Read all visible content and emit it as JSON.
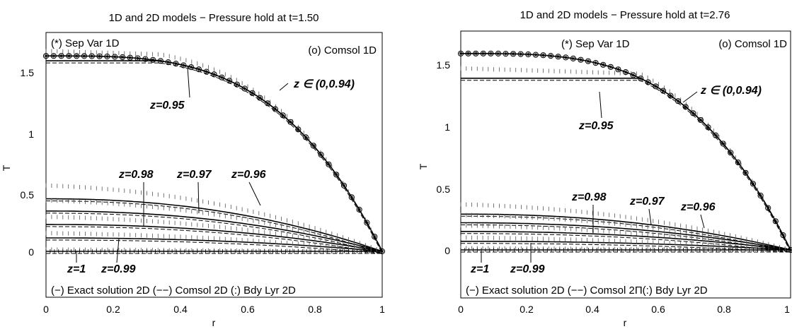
{
  "chart_data": [
    {
      "type": "line",
      "title": "1D and 2D models − Pressure hold at t=1.50",
      "xlabel": "r",
      "ylabel": "T",
      "xlim": [
        0,
        1
      ],
      "ylim": [
        -0.25,
        1.7
      ],
      "xticks": [
        "0",
        "0.2",
        "0.4",
        "0.6",
        "0.8",
        "1"
      ],
      "yticks": [
        "0",
        "0.5",
        "1",
        "1.5"
      ],
      "grid": false,
      "legend_top_left": "(*) Sep Var 1D",
      "legend_top_right": "(o) Comsol 1D",
      "legend_bottom": "(−) Exact solution 2D (−−) Comsol 2D (:) Bdy Lyr 2D",
      "curve_labels": [
        "z ∈ (0,0.94)",
        "z=0.95",
        "z=0.96",
        "z=0.97",
        "z=0.98",
        "z=0.99",
        "z=1"
      ],
      "top_curve_amplitude": 1.6,
      "series": [
        {
          "name": "z ∈ (0,0.94)",
          "T_at_r0": 1.6
        },
        {
          "name": "z=0.95",
          "T_at_r0": 1.56
        },
        {
          "name": "z=0.96",
          "T_at_r0": 0.43
        },
        {
          "name": "z=0.97",
          "T_at_r0": 0.33
        },
        {
          "name": "z=0.98",
          "T_at_r0": 0.22
        },
        {
          "name": "z=0.99",
          "T_at_r0": 0.11
        },
        {
          "name": "z=1",
          "T_at_r0": 0.0
        }
      ]
    },
    {
      "type": "line",
      "title": "1D and 2D models − Pressure hold at t=2.76",
      "xlabel": "r",
      "ylabel": "T",
      "xlim": [
        0,
        1
      ],
      "ylim": [
        -0.25,
        1.75
      ],
      "xticks": [
        "0",
        "0.2",
        "0.4",
        "0.6",
        "0.8",
        "1"
      ],
      "yticks": [
        "0",
        "0.5",
        "1",
        "1.5"
      ],
      "grid": false,
      "legend_top_left": "(*) Sep Var 1D",
      "legend_top_right": "(o) Comsol 1D",
      "legend_bottom": "(−) Exact solution 2D (−−) Comsol 2Π(:) Bdy Lyr 2D",
      "curve_labels": [
        "z ∈ (0,0.94)",
        "z=0.95",
        "z=0.96",
        "z=0.97",
        "z=0.98",
        "z=0.99",
        "z=1"
      ],
      "top_curve_amplitude": 1.59,
      "series": [
        {
          "name": "z ∈ (0,0.94)",
          "T_at_r0": 1.59
        },
        {
          "name": "z=0.95",
          "T_at_r0": 1.39
        },
        {
          "name": "z=0.96",
          "T_at_r0": 0.29
        },
        {
          "name": "z=0.97",
          "T_at_r0": 0.22
        },
        {
          "name": "z=0.98",
          "T_at_r0": 0.15
        },
        {
          "name": "z=0.99",
          "T_at_r0": 0.07
        },
        {
          "name": "z=1",
          "T_at_r0": 0.0
        }
      ]
    }
  ]
}
